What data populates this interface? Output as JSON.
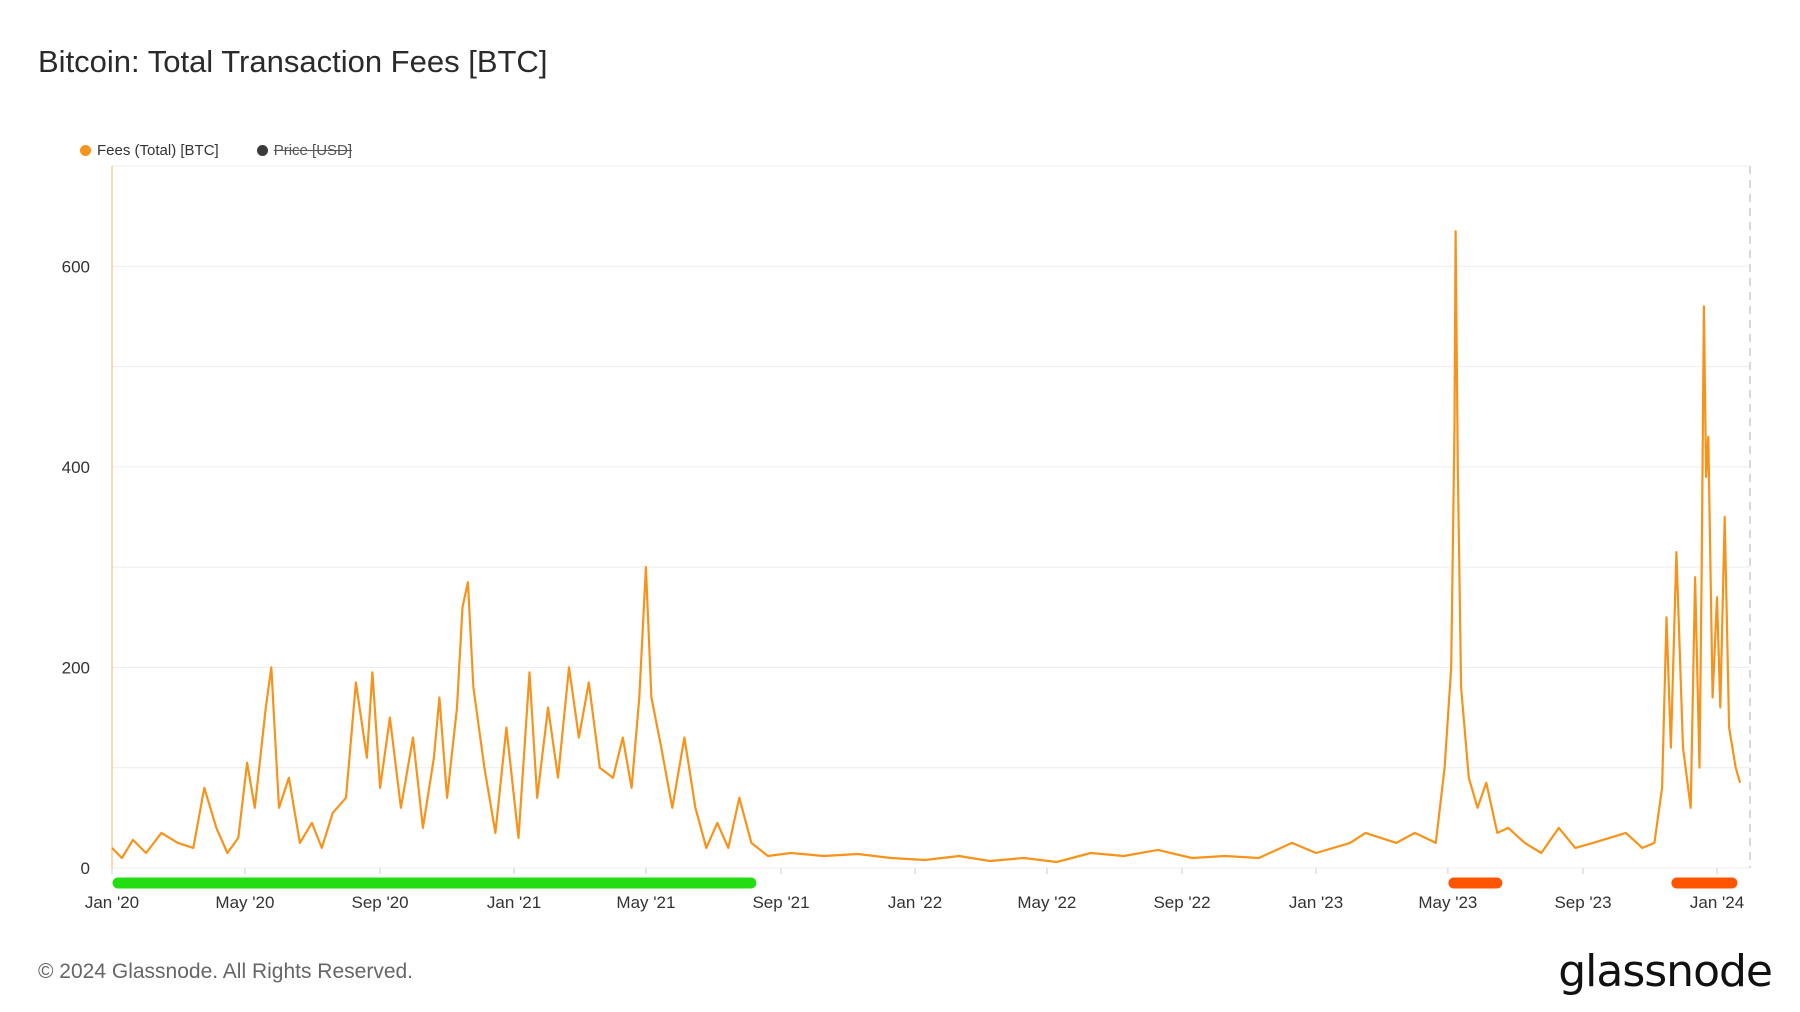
{
  "title": "Bitcoin: Total Transaction Fees [BTC]",
  "legend": {
    "fees_label": "Fees (Total) [BTC]",
    "price_label": "Price [USD]"
  },
  "footer": {
    "copyright": "© 2024 Glassnode. All Rights Reserved."
  },
  "logo": {
    "text": "glassnode"
  },
  "colors": {
    "fees": "#f7931a",
    "price": "#3a3a3a",
    "grid": "#ececec",
    "bull_band": "#22dd11",
    "bear_band": "#ff5500"
  },
  "chart_data": {
    "type": "line",
    "title": "Bitcoin: Total Transaction Fees [BTC]",
    "xlabel": "",
    "ylabel": "",
    "ylim": [
      0,
      700
    ],
    "yticks": [
      0,
      200,
      400,
      600
    ],
    "grid": true,
    "legend_position": "top-left",
    "x_start": "2020-01-01",
    "x_end": "2024-01-31",
    "xticks": [
      {
        "label": "Jan '20",
        "date": "2020-01-01"
      },
      {
        "label": "May '20",
        "date": "2020-05-01"
      },
      {
        "label": "Sep '20",
        "date": "2020-09-01"
      },
      {
        "label": "Jan '21",
        "date": "2021-01-01"
      },
      {
        "label": "May '21",
        "date": "2021-05-01"
      },
      {
        "label": "Sep '21",
        "date": "2021-09-01"
      },
      {
        "label": "Jan '22",
        "date": "2022-01-01"
      },
      {
        "label": "May '22",
        "date": "2022-05-01"
      },
      {
        "label": "Sep '22",
        "date": "2022-09-01"
      },
      {
        "label": "Jan '23",
        "date": "2023-01-01"
      },
      {
        "label": "May '23",
        "date": "2023-05-01"
      },
      {
        "label": "Sep '23",
        "date": "2023-09-01"
      },
      {
        "label": "Jan '24",
        "date": "2024-01-01"
      }
    ],
    "bands": [
      {
        "start": "2020-01-01",
        "end": "2021-08-10",
        "color": "#22dd11"
      },
      {
        "start": "2023-05-01",
        "end": "2023-06-20",
        "color": "#ff5500"
      },
      {
        "start": "2023-11-20",
        "end": "2024-01-20",
        "color": "#ff5500"
      }
    ],
    "series": [
      {
        "name": "Fees (Total) [BTC]",
        "color": "#f7931a",
        "points": [
          [
            "2020-01-01",
            20
          ],
          [
            "2020-01-10",
            10
          ],
          [
            "2020-01-20",
            28
          ],
          [
            "2020-02-01",
            15
          ],
          [
            "2020-02-15",
            35
          ],
          [
            "2020-03-01",
            25
          ],
          [
            "2020-03-15",
            20
          ],
          [
            "2020-03-25",
            80
          ],
          [
            "2020-04-05",
            40
          ],
          [
            "2020-04-15",
            15
          ],
          [
            "2020-04-25",
            30
          ],
          [
            "2020-05-03",
            105
          ],
          [
            "2020-05-10",
            60
          ],
          [
            "2020-05-20",
            160
          ],
          [
            "2020-05-25",
            200
          ],
          [
            "2020-06-01",
            60
          ],
          [
            "2020-06-10",
            90
          ],
          [
            "2020-06-20",
            25
          ],
          [
            "2020-07-01",
            45
          ],
          [
            "2020-07-10",
            20
          ],
          [
            "2020-07-20",
            55
          ],
          [
            "2020-08-01",
            70
          ],
          [
            "2020-08-10",
            185
          ],
          [
            "2020-08-20",
            110
          ],
          [
            "2020-08-25",
            195
          ],
          [
            "2020-09-01",
            80
          ],
          [
            "2020-09-10",
            150
          ],
          [
            "2020-09-20",
            60
          ],
          [
            "2020-10-01",
            130
          ],
          [
            "2020-10-10",
            40
          ],
          [
            "2020-10-20",
            110
          ],
          [
            "2020-10-25",
            170
          ],
          [
            "2020-11-01",
            70
          ],
          [
            "2020-11-10",
            160
          ],
          [
            "2020-11-15",
            260
          ],
          [
            "2020-11-20",
            285
          ],
          [
            "2020-11-25",
            180
          ],
          [
            "2020-12-05",
            100
          ],
          [
            "2020-12-15",
            35
          ],
          [
            "2020-12-25",
            140
          ],
          [
            "2021-01-05",
            30
          ],
          [
            "2021-01-15",
            195
          ],
          [
            "2021-01-22",
            70
          ],
          [
            "2021-02-01",
            160
          ],
          [
            "2021-02-10",
            90
          ],
          [
            "2021-02-20",
            200
          ],
          [
            "2021-03-01",
            130
          ],
          [
            "2021-03-10",
            185
          ],
          [
            "2021-03-20",
            100
          ],
          [
            "2021-04-01",
            90
          ],
          [
            "2021-04-10",
            130
          ],
          [
            "2021-04-18",
            80
          ],
          [
            "2021-04-25",
            170
          ],
          [
            "2021-05-01",
            300
          ],
          [
            "2021-05-06",
            170
          ],
          [
            "2021-05-15",
            120
          ],
          [
            "2021-05-25",
            60
          ],
          [
            "2021-06-05",
            130
          ],
          [
            "2021-06-15",
            60
          ],
          [
            "2021-06-25",
            20
          ],
          [
            "2021-07-05",
            45
          ],
          [
            "2021-07-15",
            20
          ],
          [
            "2021-07-25",
            70
          ],
          [
            "2021-08-05",
            25
          ],
          [
            "2021-08-20",
            12
          ],
          [
            "2021-09-10",
            15
          ],
          [
            "2021-10-10",
            12
          ],
          [
            "2021-11-10",
            14
          ],
          [
            "2021-12-10",
            10
          ],
          [
            "2022-01-10",
            8
          ],
          [
            "2022-02-10",
            12
          ],
          [
            "2022-03-10",
            7
          ],
          [
            "2022-04-10",
            10
          ],
          [
            "2022-05-10",
            6
          ],
          [
            "2022-06-10",
            15
          ],
          [
            "2022-07-10",
            12
          ],
          [
            "2022-08-10",
            18
          ],
          [
            "2022-09-10",
            10
          ],
          [
            "2022-10-10",
            12
          ],
          [
            "2022-11-10",
            10
          ],
          [
            "2022-12-10",
            25
          ],
          [
            "2023-01-01",
            15
          ],
          [
            "2023-02-01",
            25
          ],
          [
            "2023-02-15",
            35
          ],
          [
            "2023-03-01",
            30
          ],
          [
            "2023-03-15",
            25
          ],
          [
            "2023-04-01",
            35
          ],
          [
            "2023-04-20",
            25
          ],
          [
            "2023-04-28",
            100
          ],
          [
            "2023-05-04",
            200
          ],
          [
            "2023-05-07",
            440
          ],
          [
            "2023-05-08",
            635
          ],
          [
            "2023-05-10",
            400
          ],
          [
            "2023-05-13",
            180
          ],
          [
            "2023-05-20",
            90
          ],
          [
            "2023-05-28",
            60
          ],
          [
            "2023-06-05",
            85
          ],
          [
            "2023-06-15",
            35
          ],
          [
            "2023-06-25",
            40
          ],
          [
            "2023-07-10",
            25
          ],
          [
            "2023-07-25",
            15
          ],
          [
            "2023-08-10",
            40
          ],
          [
            "2023-08-25",
            20
          ],
          [
            "2023-09-10",
            25
          ],
          [
            "2023-09-25",
            30
          ],
          [
            "2023-10-10",
            35
          ],
          [
            "2023-10-25",
            20
          ],
          [
            "2023-11-05",
            25
          ],
          [
            "2023-11-12",
            80
          ],
          [
            "2023-11-16",
            250
          ],
          [
            "2023-11-20",
            120
          ],
          [
            "2023-11-25",
            315
          ],
          [
            "2023-12-01",
            120
          ],
          [
            "2023-12-08",
            60
          ],
          [
            "2023-12-12",
            290
          ],
          [
            "2023-12-16",
            100
          ],
          [
            "2023-12-18",
            300
          ],
          [
            "2023-12-20",
            560
          ],
          [
            "2023-12-22",
            390
          ],
          [
            "2023-12-24",
            430
          ],
          [
            "2023-12-28",
            170
          ],
          [
            "2024-01-01",
            270
          ],
          [
            "2024-01-04",
            160
          ],
          [
            "2024-01-08",
            350
          ],
          [
            "2024-01-12",
            140
          ],
          [
            "2024-01-18",
            100
          ],
          [
            "2024-01-22",
            85
          ]
        ]
      },
      {
        "name": "Price [USD]",
        "color": "#3a3a3a",
        "hidden": true
      }
    ]
  }
}
